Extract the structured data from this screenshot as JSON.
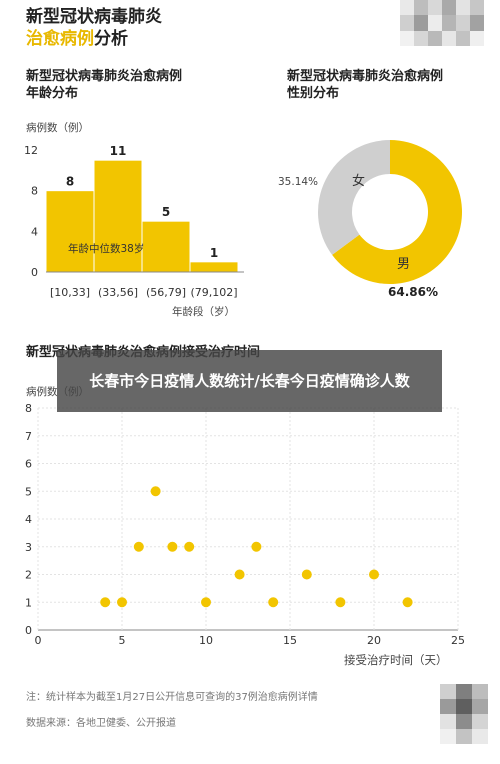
{
  "header": {
    "title_line1": "新型冠状病毒肺炎",
    "title_line2_accent": "治愈病例",
    "title_line2_rest": "分析"
  },
  "bar_section": {
    "title_line1": "新型冠状病毒肺炎治愈病例",
    "title_line2": "年龄分布",
    "ylabel": "病例数（例）",
    "xlabel": "年龄段（岁）",
    "median_note": "年龄中位数38岁"
  },
  "pie_section": {
    "title_line1": "新型冠状病毒肺炎治愈病例",
    "title_line2": "性别分布",
    "female_label": "女",
    "male_label": "男",
    "female_pct": "35.14%",
    "male_pct": "64.86%"
  },
  "scatter_section": {
    "title": "新型冠状病毒肺炎治愈病例接受治疗时间",
    "ylabel": "病例数（例）",
    "xlabel": "接受治疗时间（天）"
  },
  "overlay_banner": "长春市今日疫情人数统计/长春今日疫情确诊人数",
  "footnote": {
    "note": "注：统计样本为截至1月27日公开信息可查询的37例治愈病例详情",
    "source": "数据来源：各地卫健委、公开报道"
  },
  "colors": {
    "accent": "#f2c500",
    "grey": "#cfcfcf",
    "text": "#222222"
  },
  "chart_data": [
    {
      "type": "bar",
      "title": "新型冠状病毒肺炎治愈病例年龄分布",
      "categories": [
        "[10,33]",
        "(33,56]",
        "(56,79]",
        "(79,102]"
      ],
      "values": [
        8,
        11,
        5,
        1
      ],
      "ylim": [
        0,
        12
      ],
      "yticks": [
        "0",
        "4",
        "8",
        "12"
      ],
      "xlabel": "年龄段（岁）",
      "ylabel": "病例数（例）",
      "annotation": "年龄中位数38岁"
    },
    {
      "type": "pie",
      "title": "新型冠状病毒肺炎治愈病例性别分布",
      "labels": [
        "男",
        "女"
      ],
      "values": [
        64.86,
        35.14
      ],
      "colors": [
        "#f2c500",
        "#cfcfcf"
      ]
    },
    {
      "type": "scatter",
      "title": "新型冠状病毒肺炎治愈病例接受治疗时间",
      "xlabel": "接受治疗时间（天）",
      "ylabel": "病例数（例）",
      "xlim": [
        0,
        25
      ],
      "ylim": [
        0,
        8
      ],
      "xticks": [
        "0",
        "5",
        "10",
        "15",
        "20",
        "25"
      ],
      "yticks": [
        "0",
        "1",
        "2",
        "3",
        "4",
        "5",
        "6",
        "7",
        "8"
      ],
      "points": [
        {
          "x": 4,
          "y": 1
        },
        {
          "x": 5,
          "y": 1
        },
        {
          "x": 6,
          "y": 3
        },
        {
          "x": 7,
          "y": 5
        },
        {
          "x": 8,
          "y": 3
        },
        {
          "x": 9,
          "y": 3
        },
        {
          "x": 10,
          "y": 1
        },
        {
          "x": 12,
          "y": 2
        },
        {
          "x": 13,
          "y": 3
        },
        {
          "x": 14,
          "y": 1
        },
        {
          "x": 16,
          "y": 2
        },
        {
          "x": 18,
          "y": 1
        },
        {
          "x": 20,
          "y": 2
        },
        {
          "x": 22,
          "y": 1
        }
      ]
    }
  ]
}
